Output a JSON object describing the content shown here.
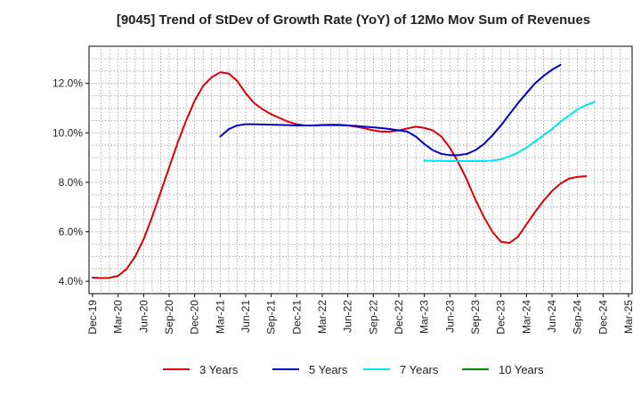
{
  "chart_data": {
    "type": "line",
    "title": "[9045]  Trend of StDev of Growth Rate (YoY) of 12Mo Mov Sum of Revenues",
    "xlabel": "",
    "ylabel": "",
    "ylim": [
      3.5,
      13.5
    ],
    "yticks": [
      4.0,
      6.0,
      8.0,
      10.0,
      12.0
    ],
    "ytick_labels": [
      "4.0%",
      "6.0%",
      "8.0%",
      "10.0%",
      "12.0%"
    ],
    "x_start": "Dec-19",
    "x_end": "Mar-25",
    "x_count_months": 63,
    "xtick_labels": [
      "Dec-19",
      "Mar-20",
      "Jun-20",
      "Sep-20",
      "Dec-20",
      "Mar-21",
      "Jun-21",
      "Sep-21",
      "Dec-21",
      "Mar-22",
      "Jun-22",
      "Sep-22",
      "Dec-22",
      "Mar-23",
      "Jun-23",
      "Sep-23",
      "Dec-23",
      "Mar-24",
      "Jun-24",
      "Sep-24",
      "Dec-24",
      "Mar-25"
    ],
    "grid": true,
    "legend_position": "bottom",
    "series": [
      {
        "name": "3 Years",
        "color": "#dd0000",
        "start_month": 0,
        "values": [
          4.15,
          4.13,
          4.14,
          4.22,
          4.5,
          5.0,
          5.7,
          6.6,
          7.6,
          8.6,
          9.6,
          10.5,
          11.3,
          11.9,
          12.25,
          12.45,
          12.4,
          12.1,
          11.6,
          11.2,
          10.95,
          10.75,
          10.6,
          10.45,
          10.35,
          10.3,
          10.3,
          10.32,
          10.33,
          10.33,
          10.3,
          10.25,
          10.18,
          10.1,
          10.05,
          10.05,
          10.1,
          10.18,
          10.25,
          10.2,
          10.1,
          9.85,
          9.4,
          8.8,
          8.1,
          7.3,
          6.6,
          6.0,
          5.6,
          5.55,
          5.8,
          6.3,
          6.8,
          7.25,
          7.65,
          7.95,
          8.15,
          8.22,
          8.25
        ]
      },
      {
        "name": "5 Years",
        "color": "#0000cc",
        "start_month": 15,
        "values": [
          9.85,
          10.15,
          10.3,
          10.35,
          10.35,
          10.34,
          10.33,
          10.32,
          10.31,
          10.3,
          10.3,
          10.3,
          10.31,
          10.31,
          10.31,
          10.3,
          10.28,
          10.25,
          10.22,
          10.19,
          10.15,
          10.1,
          10.05,
          9.85,
          9.55,
          9.3,
          9.15,
          9.1,
          9.1,
          9.15,
          9.3,
          9.55,
          9.9,
          10.3,
          10.75,
          11.2,
          11.6,
          12.0,
          12.3,
          12.55,
          12.75
        ]
      },
      {
        "name": "7 Years",
        "color": "#00e5ee",
        "start_month": 39,
        "values": [
          8.88,
          8.87,
          8.87,
          8.86,
          8.86,
          8.86,
          8.86,
          8.86,
          8.88,
          8.93,
          9.05,
          9.2,
          9.4,
          9.65,
          9.9,
          10.15,
          10.45,
          10.7,
          10.95,
          11.12,
          11.25
        ]
      },
      {
        "name": "10 Years",
        "color": "#008800",
        "start_month": 0,
        "values": []
      }
    ]
  }
}
